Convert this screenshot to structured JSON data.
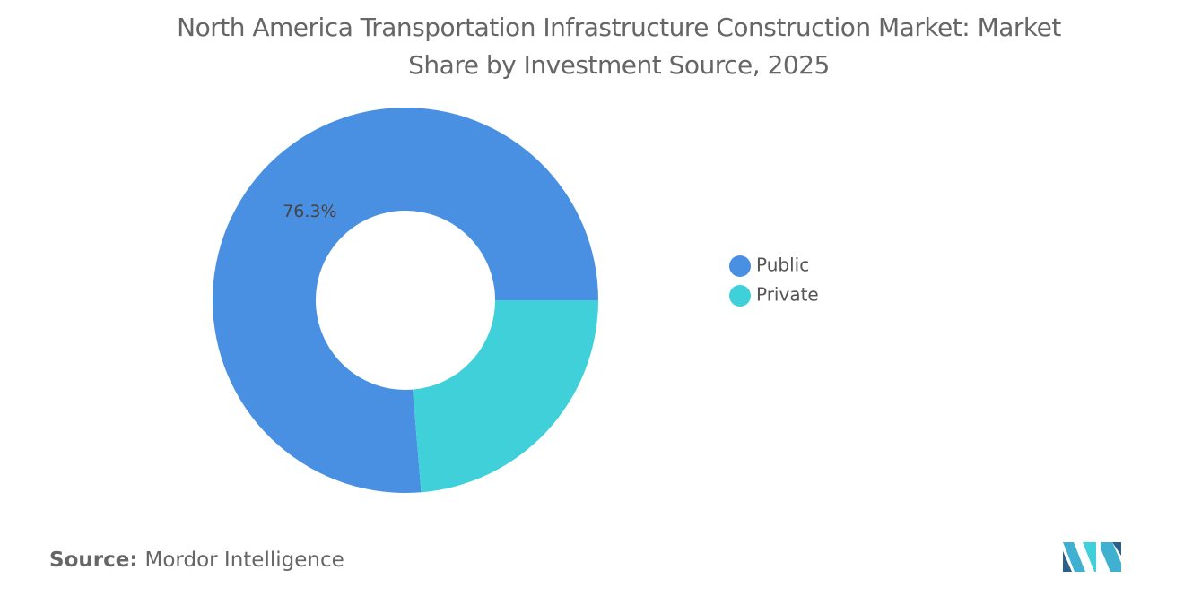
{
  "chart_data": {
    "type": "donut",
    "title": "North America Transportation Infrastructure Construction Market: Market Share by Investment Source, 2025",
    "categories": [
      "Public",
      "Private"
    ],
    "values": [
      76.3,
      23.7
    ],
    "value_labels": [
      "76.3%",
      null
    ],
    "colors": [
      "#4a90e2",
      "#3fd0d9"
    ],
    "legend": "right"
  },
  "source_label": "Source:",
  "source": "Mordor Intelligence"
}
